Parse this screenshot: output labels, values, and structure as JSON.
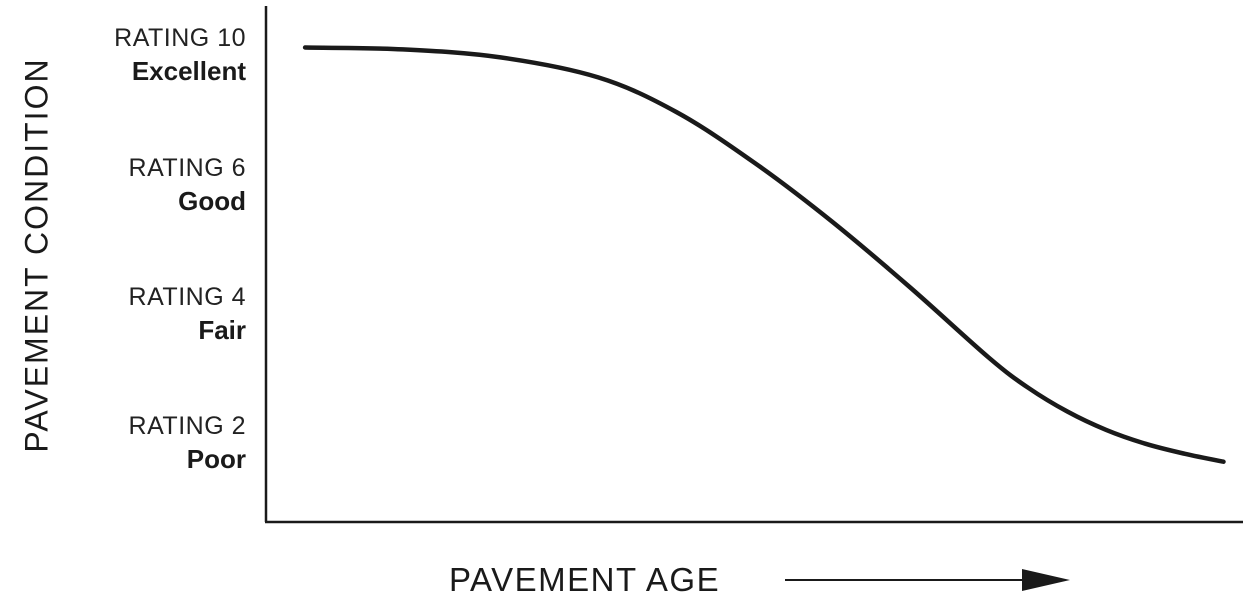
{
  "chart_data": {
    "type": "line",
    "title": "",
    "xlabel": "PAVEMENT AGE",
    "ylabel": "PAVEMENT CONDITION",
    "grid": false,
    "legend": "none",
    "x_ticks_shown": false,
    "y_ticks": [
      {
        "value": 10,
        "rating": "RATING 10",
        "condition": "Excellent"
      },
      {
        "value": 6,
        "rating": "RATING 6",
        "condition": "Good"
      },
      {
        "value": 4,
        "rating": "RATING 4",
        "condition": "Fair"
      },
      {
        "value": 2,
        "rating": "RATING 2",
        "condition": "Poor"
      }
    ],
    "ylim": [
      0,
      11
    ],
    "xlim": [
      0,
      100
    ],
    "series": [
      {
        "color": "#1a1a1a",
        "x": [
          4,
          14,
          24,
          34,
          42,
          50,
          58,
          66,
          74,
          78,
          82,
          86,
          90,
          94,
          98
        ],
        "y": [
          10.0,
          9.96,
          9.79,
          9.37,
          8.64,
          7.57,
          6.32,
          4.93,
          3.46,
          2.83,
          2.33,
          1.94,
          1.65,
          1.44,
          1.27
        ]
      }
    ]
  }
}
